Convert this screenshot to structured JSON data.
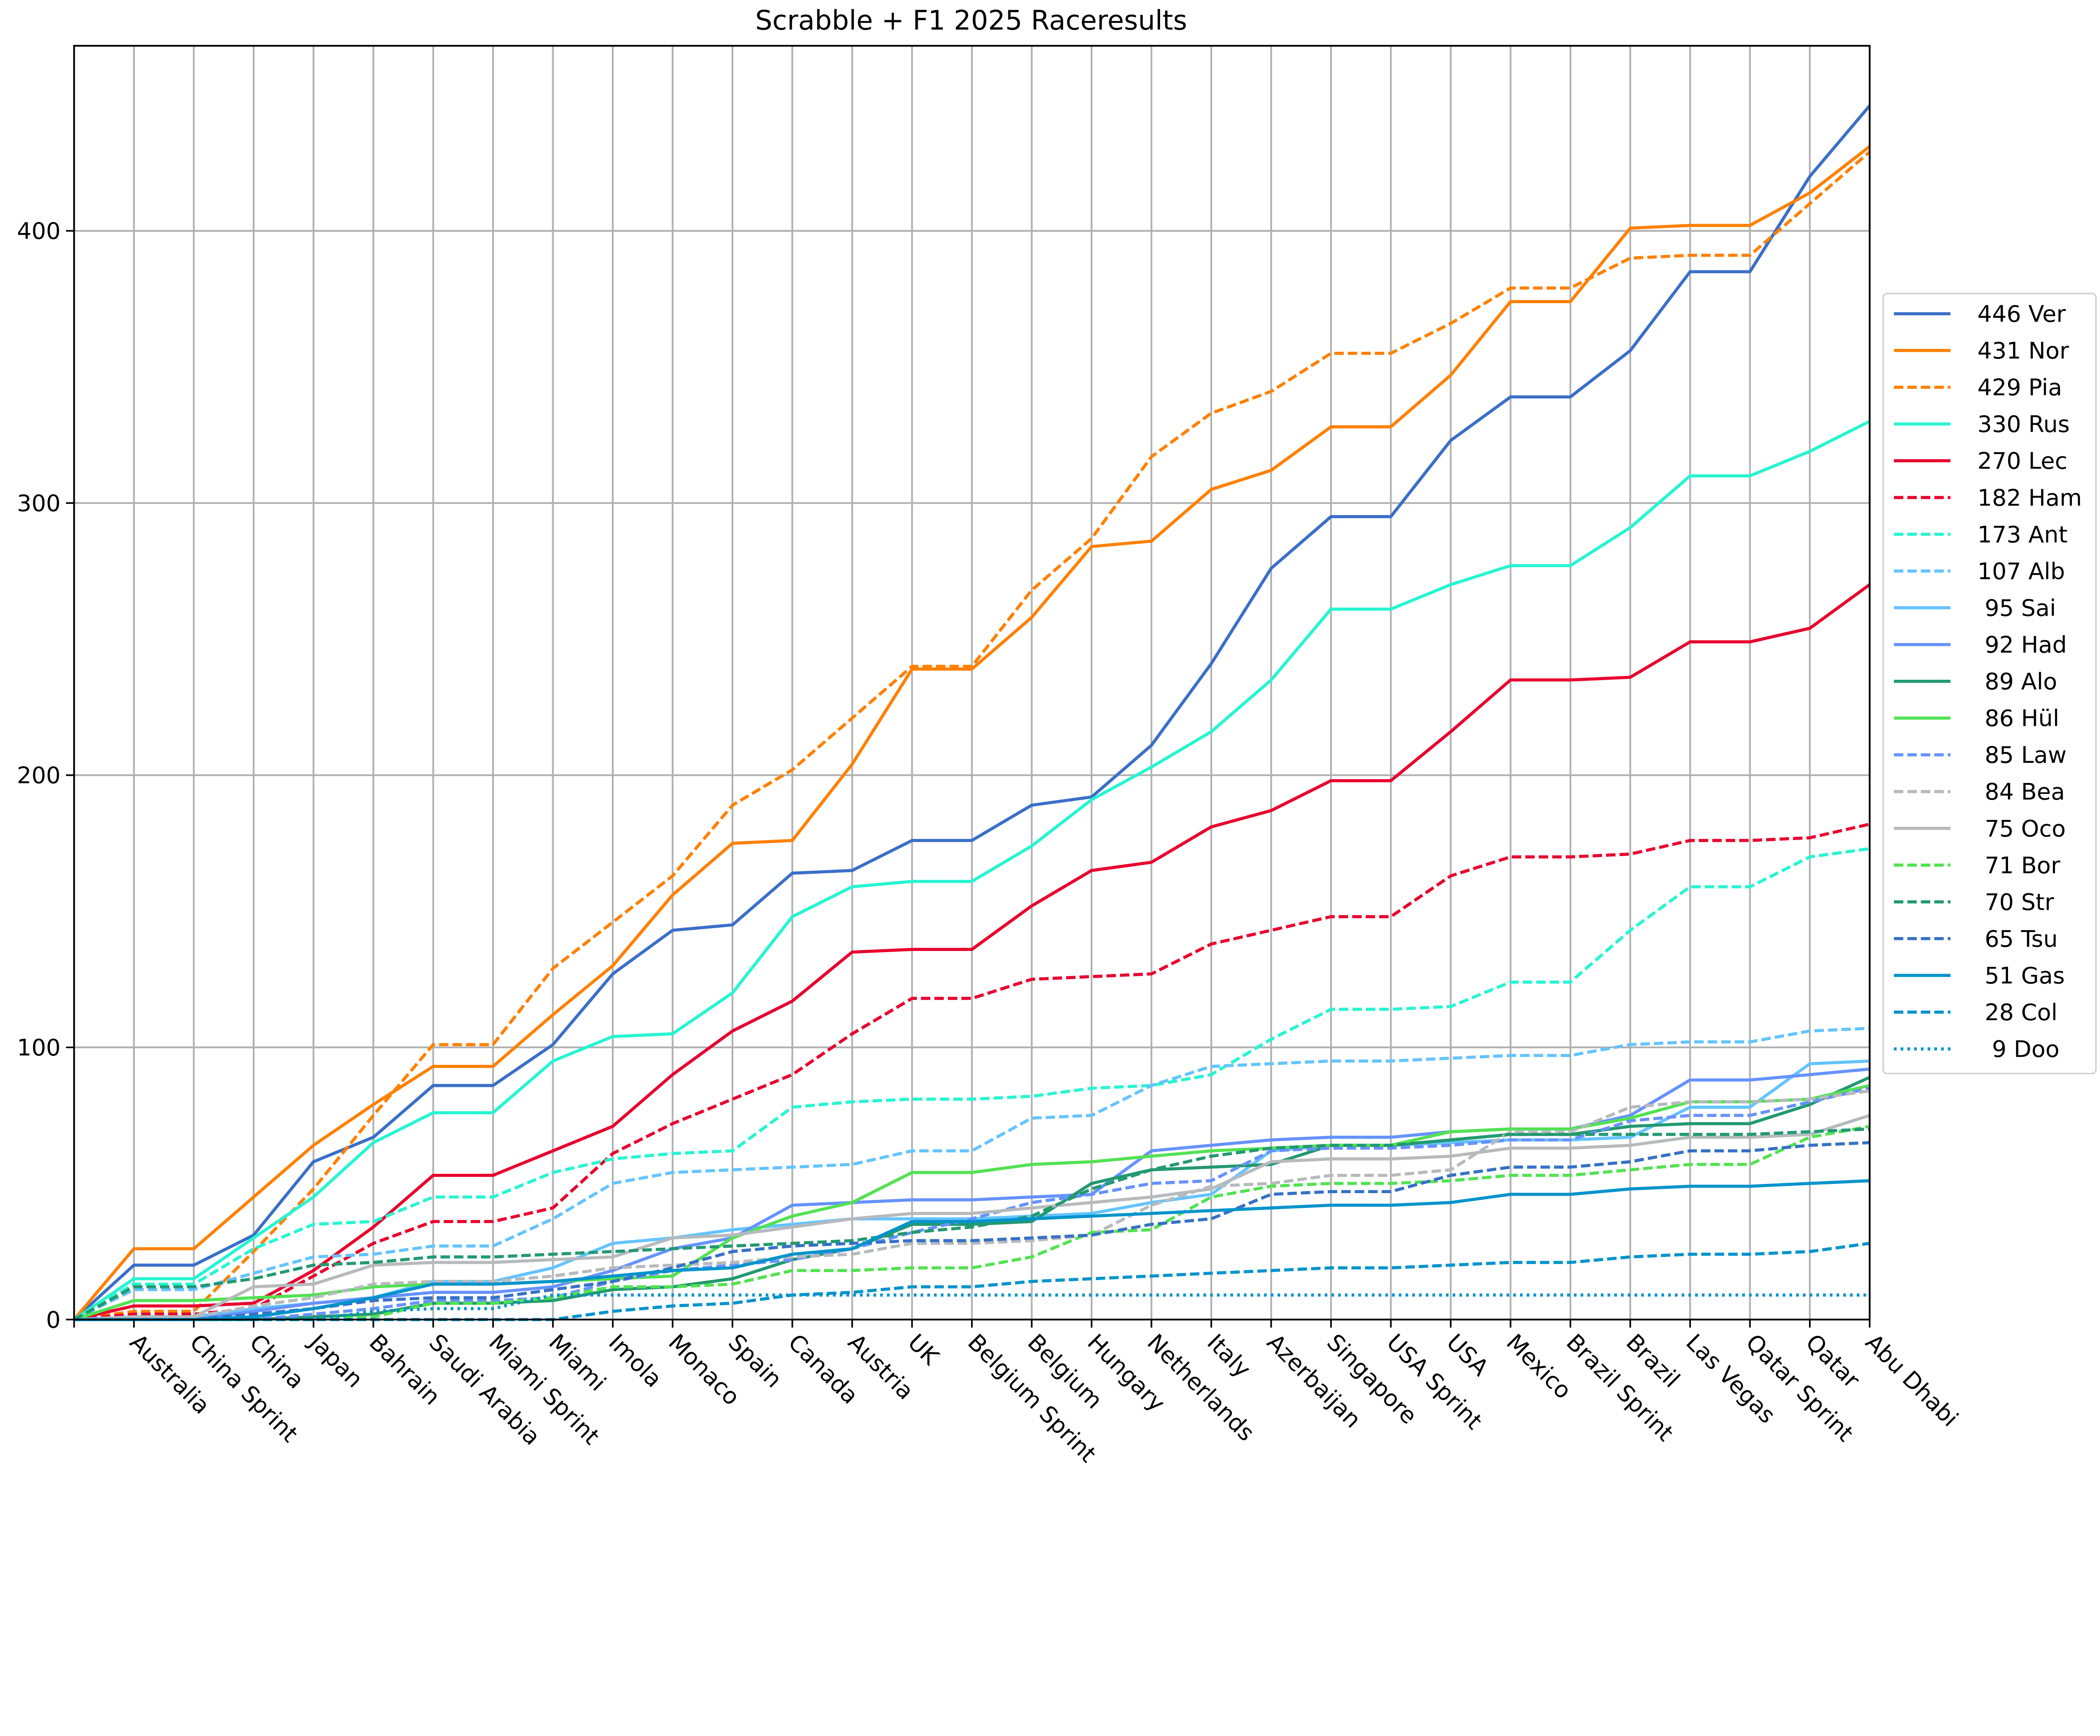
{
  "chart_data": {
    "type": "line",
    "title": "Scrabble + F1 2025 Raceresults",
    "xlabel": "",
    "ylabel": "",
    "ylim": [
      0,
      468
    ],
    "yticks": [
      0,
      100,
      200,
      300,
      400
    ],
    "grid": true,
    "legend_position": "right",
    "categories": [
      "",
      "Australia",
      "China Sprint",
      "China",
      "Japan",
      "Bahrain",
      "Saudi Arabia",
      "Miami Sprint",
      "Miami",
      "Imola",
      "Monaco",
      "Spain",
      "Canada",
      "Austria",
      "UK",
      "Belgium Sprint",
      "Belgium",
      "Hungary",
      "Netherlands",
      "Italy",
      "Azerbaijan",
      "Singapore",
      "USA Sprint",
      "USA",
      "Mexico",
      "Brazil Sprint",
      "Brazil",
      "Las Vegas",
      "Qatar Sprint",
      "Qatar",
      "Abu Dhabi"
    ],
    "series": [
      {
        "name": "446 Ver",
        "color": "#3a6fc8",
        "style": "solid",
        "values": [
          0,
          20,
          20,
          31,
          58,
          67,
          86,
          86,
          101,
          127,
          143,
          145,
          164,
          165,
          176,
          176,
          189,
          192,
          211,
          241,
          276,
          295,
          295,
          323,
          339,
          339,
          356,
          385,
          385,
          420,
          446
        ]
      },
      {
        "name": "431 Nor",
        "color": "#ff8000",
        "style": "solid",
        "values": [
          0,
          26,
          26,
          45,
          64,
          79,
          93,
          93,
          112,
          130,
          156,
          175,
          176,
          204,
          239,
          239,
          258,
          284,
          286,
          305,
          312,
          328,
          328,
          347,
          374,
          374,
          401,
          402,
          402,
          414,
          431
        ]
      },
      {
        "name": "429 Pia",
        "color": "#ff8000",
        "style": "dashed",
        "values": [
          0,
          3,
          3,
          25,
          48,
          75,
          101,
          101,
          129,
          146,
          163,
          189,
          202,
          221,
          240,
          240,
          268,
          287,
          317,
          333,
          341,
          355,
          355,
          366,
          379,
          379,
          390,
          391,
          391,
          410,
          429
        ]
      },
      {
        "name": "330 Rus",
        "color": "#27f4d2",
        "style": "solid",
        "values": [
          0,
          15,
          15,
          30,
          45,
          65,
          76,
          76,
          95,
          104,
          105,
          120,
          148,
          159,
          161,
          161,
          174,
          191,
          203,
          216,
          235,
          261,
          261,
          270,
          277,
          277,
          291,
          310,
          310,
          319,
          330
        ]
      },
      {
        "name": "270 Lec",
        "color": "#e8002d",
        "style": "solid",
        "values": [
          0,
          5,
          5,
          6,
          18,
          34,
          53,
          53,
          62,
          71,
          90,
          106,
          117,
          135,
          136,
          136,
          152,
          165,
          168,
          181,
          187,
          198,
          198,
          216,
          235,
          235,
          236,
          249,
          249,
          254,
          270
        ]
      },
      {
        "name": "182 Ham",
        "color": "#e8002d",
        "style": "dashed",
        "values": [
          0,
          2,
          2,
          4,
          16,
          28,
          36,
          36,
          41,
          61,
          72,
          81,
          90,
          105,
          118,
          118,
          125,
          126,
          127,
          138,
          143,
          148,
          148,
          163,
          170,
          170,
          171,
          176,
          176,
          177,
          182
        ]
      },
      {
        "name": "173 Ant",
        "color": "#27f4d2",
        "style": "dashed",
        "values": [
          0,
          13,
          13,
          26,
          35,
          36,
          45,
          45,
          54,
          59,
          61,
          62,
          78,
          80,
          81,
          81,
          82,
          85,
          86,
          90,
          103,
          114,
          114,
          115,
          124,
          124,
          143,
          159,
          159,
          170,
          173
        ]
      },
      {
        "name": "107 Alb",
        "color": "#64c4ff",
        "style": "dashed",
        "values": [
          0,
          11,
          11,
          17,
          23,
          24,
          27,
          27,
          37,
          50,
          54,
          55,
          56,
          57,
          62,
          62,
          74,
          75,
          86,
          93,
          94,
          95,
          95,
          96,
          97,
          97,
          101,
          102,
          102,
          106,
          107
        ]
      },
      {
        "name": " 95 Sai",
        "color": "#64c4ff",
        "style": "solid",
        "values": [
          0,
          1,
          1,
          4,
          6,
          8,
          14,
          14,
          19,
          28,
          30,
          33,
          35,
          37,
          37,
          37,
          38,
          39,
          43,
          46,
          62,
          64,
          64,
          65,
          66,
          66,
          67,
          78,
          78,
          94,
          95
        ]
      },
      {
        "name": " 92 Had",
        "color": "#6692ff",
        "style": "solid",
        "values": [
          0,
          0,
          0,
          3,
          6,
          8,
          10,
          10,
          12,
          18,
          26,
          30,
          42,
          43,
          44,
          44,
          45,
          46,
          62,
          64,
          66,
          67,
          67,
          69,
          70,
          70,
          75,
          88,
          88,
          90,
          92
        ]
      },
      {
        "name": " 89 Alo",
        "color": "#229971",
        "style": "solid",
        "values": [
          0,
          0,
          0,
          0,
          1,
          2,
          6,
          6,
          7,
          11,
          12,
          15,
          22,
          26,
          35,
          35,
          36,
          50,
          55,
          56,
          57,
          64,
          64,
          66,
          68,
          68,
          71,
          72,
          72,
          79,
          89
        ]
      },
      {
        "name": " 86 Hül",
        "color": "#52e252",
        "style": "solid",
        "values": [
          0,
          7,
          7,
          8,
          9,
          12,
          13,
          13,
          14,
          15,
          16,
          30,
          38,
          43,
          54,
          54,
          57,
          58,
          60,
          62,
          63,
          64,
          64,
          69,
          70,
          70,
          74,
          80,
          80,
          81,
          86
        ]
      },
      {
        "name": " 85 Law",
        "color": "#6692ff",
        "style": "dashed",
        "values": [
          0,
          0,
          0,
          0,
          2,
          4,
          7,
          7,
          8,
          14,
          18,
          20,
          22,
          26,
          32,
          37,
          43,
          46,
          50,
          51,
          62,
          63,
          63,
          64,
          66,
          66,
          73,
          75,
          75,
          80,
          85
        ]
      },
      {
        "name": " 84 Bea",
        "color": "#b6babd",
        "style": "dashed",
        "values": [
          0,
          1,
          1,
          5,
          8,
          13,
          14,
          14,
          16,
          19,
          20,
          21,
          23,
          24,
          28,
          28,
          29,
          31,
          42,
          49,
          50,
          53,
          53,
          55,
          69,
          69,
          78,
          80,
          80,
          81,
          84
        ]
      },
      {
        "name": " 75 Oco",
        "color": "#b6babd",
        "style": "solid",
        "values": [
          0,
          1,
          1,
          12,
          13,
          20,
          21,
          21,
          22,
          23,
          30,
          31,
          34,
          37,
          39,
          39,
          41,
          43,
          45,
          48,
          58,
          59,
          59,
          60,
          63,
          63,
          64,
          67,
          67,
          68,
          75
        ]
      },
      {
        "name": " 71 Bor",
        "color": "#52e252",
        "style": "dashed",
        "values": [
          0,
          0,
          0,
          0,
          0,
          1,
          6,
          6,
          8,
          12,
          12,
          13,
          18,
          18,
          19,
          19,
          23,
          32,
          33,
          45,
          49,
          50,
          50,
          51,
          53,
          53,
          55,
          57,
          57,
          67,
          71
        ]
      },
      {
        "name": " 70 Str",
        "color": "#229971",
        "style": "dashed",
        "values": [
          0,
          12,
          12,
          15,
          20,
          21,
          23,
          23,
          24,
          25,
          26,
          27,
          28,
          29,
          32,
          34,
          38,
          48,
          55,
          60,
          63,
          64,
          64,
          66,
          68,
          68,
          68,
          68,
          68,
          69,
          70
        ]
      },
      {
        "name": " 65 Tsu",
        "color": "#3671c6",
        "style": "dashed",
        "values": [
          0,
          0,
          0,
          2,
          4,
          7,
          8,
          8,
          11,
          14,
          19,
          25,
          27,
          28,
          29,
          29,
          30,
          31,
          35,
          37,
          46,
          47,
          47,
          53,
          56,
          56,
          58,
          62,
          62,
          64,
          65
        ]
      },
      {
        "name": " 51 Gas",
        "color": "#0093cc",
        "style": "solid",
        "values": [
          0,
          0,
          0,
          1,
          4,
          8,
          13,
          13,
          14,
          16,
          18,
          19,
          24,
          26,
          36,
          36,
          37,
          38,
          39,
          40,
          41,
          42,
          42,
          43,
          46,
          46,
          48,
          49,
          49,
          50,
          51
        ]
      },
      {
        "name": " 28 Col",
        "color": "#0093cc",
        "style": "dashed",
        "values": [
          0,
          0,
          0,
          0,
          0,
          0,
          0,
          0,
          0,
          3,
          5,
          6,
          9,
          10,
          12,
          12,
          14,
          15,
          16,
          17,
          18,
          19,
          19,
          20,
          21,
          21,
          23,
          24,
          24,
          25,
          28
        ]
      },
      {
        "name": "  9 Doo",
        "color": "#0093cc",
        "style": "dotted",
        "values": [
          0,
          0,
          0,
          0,
          0,
          3,
          4,
          4,
          9,
          9,
          9,
          9,
          9,
          9,
          9,
          9,
          9,
          9,
          9,
          9,
          9,
          9,
          9,
          9,
          9,
          9,
          9,
          9,
          9,
          9,
          9
        ]
      }
    ]
  }
}
